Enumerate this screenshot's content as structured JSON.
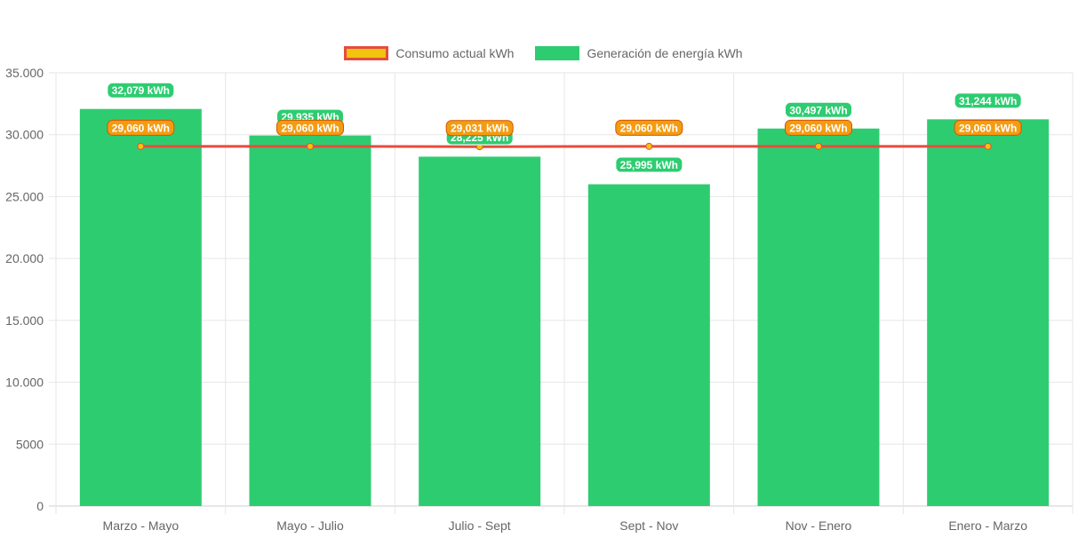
{
  "chart_data": {
    "type": "bar",
    "title": "",
    "xlabel": "",
    "ylabel": "",
    "categories": [
      "Marzo - Mayo",
      "Mayo - Julio",
      "Julio - Sept",
      "Sept - Nov",
      "Nov - Enero",
      "Enero - Marzo"
    ],
    "ylim": [
      0,
      35000
    ],
    "yticks": [
      0,
      5000,
      10000,
      15000,
      20000,
      25000,
      30000,
      35000
    ],
    "ytick_labels": [
      "0",
      "5000",
      "10.000",
      "15.000",
      "20.000",
      "25.000",
      "30.000",
      "35.000"
    ],
    "grid": true,
    "legend_position": "top-center",
    "series": [
      {
        "name": "Generación de energía kWh",
        "type": "bar",
        "color": "#2ecc71",
        "values": [
          32079,
          29935,
          28225,
          25995,
          30497,
          31244
        ],
        "data_labels": [
          "32,079 kWh",
          "29,935 kWh",
          "28,225 kWh",
          "25,995 kWh",
          "30,497 kWh",
          "31,244 kWh"
        ]
      },
      {
        "name": "Consumo actual kWh",
        "type": "line",
        "color": "#e74c3c",
        "fill_color": "#f1c40f",
        "values": [
          29060,
          29060,
          29031,
          29060,
          29060,
          29060
        ],
        "data_labels": [
          "29,060 kWh",
          "29,060 kWh",
          "29,031 kWh",
          "29,060 kWh",
          "29,060 kWh",
          "29,060 kWh"
        ]
      }
    ]
  },
  "legend": {
    "items": [
      {
        "label": "Consumo actual kWh",
        "fill": "#f1c40f",
        "border": "#e74c3c"
      },
      {
        "label": "Generación de energía kWh",
        "fill": "#2ecc71",
        "border": "#2ecc71"
      }
    ]
  }
}
